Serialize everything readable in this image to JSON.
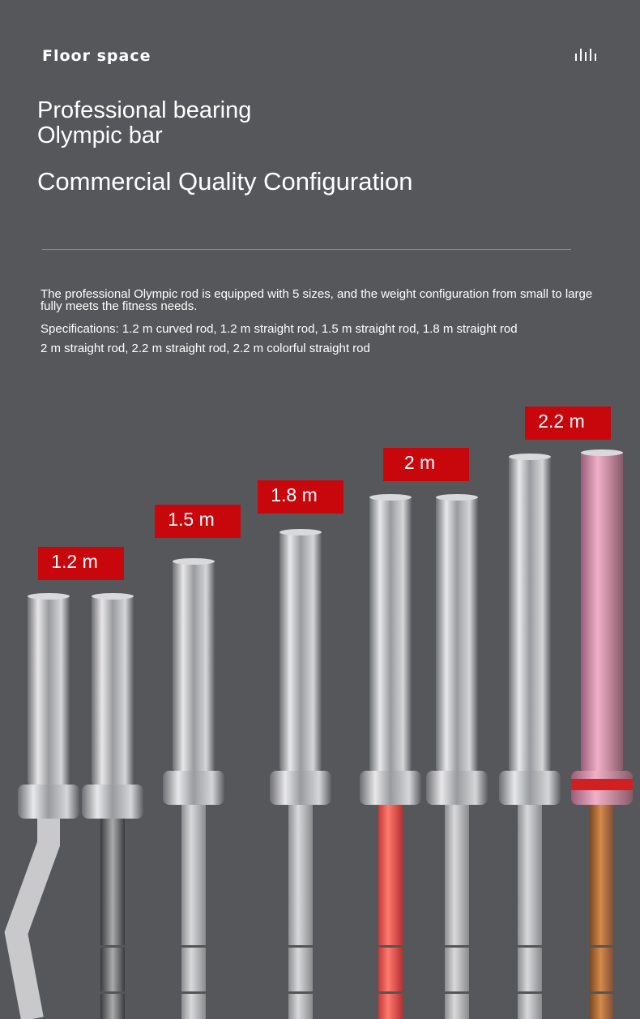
{
  "header": {
    "title": "Floor space"
  },
  "headline": [
    "Professional bearing",
    "Olympic bar"
  ],
  "subheadline": "Commercial Quality Configuration",
  "description": "The professional Olympic rod is equipped with 5 sizes, and the weight configuration from small to large fully meets the fitness needs.",
  "specifications": [
    "Specifications: 1.2 m curved rod, 1.2 m straight rod, 1.5 m straight rod, 1.8 m straight rod",
    "2 m straight rod, 2.2 m straight rod, 2.2 m colorful straight rod"
  ],
  "size_labels": [
    "1.2 m",
    "1.5 m",
    "1.8 m",
    "2 m",
    "2.2 m"
  ]
}
